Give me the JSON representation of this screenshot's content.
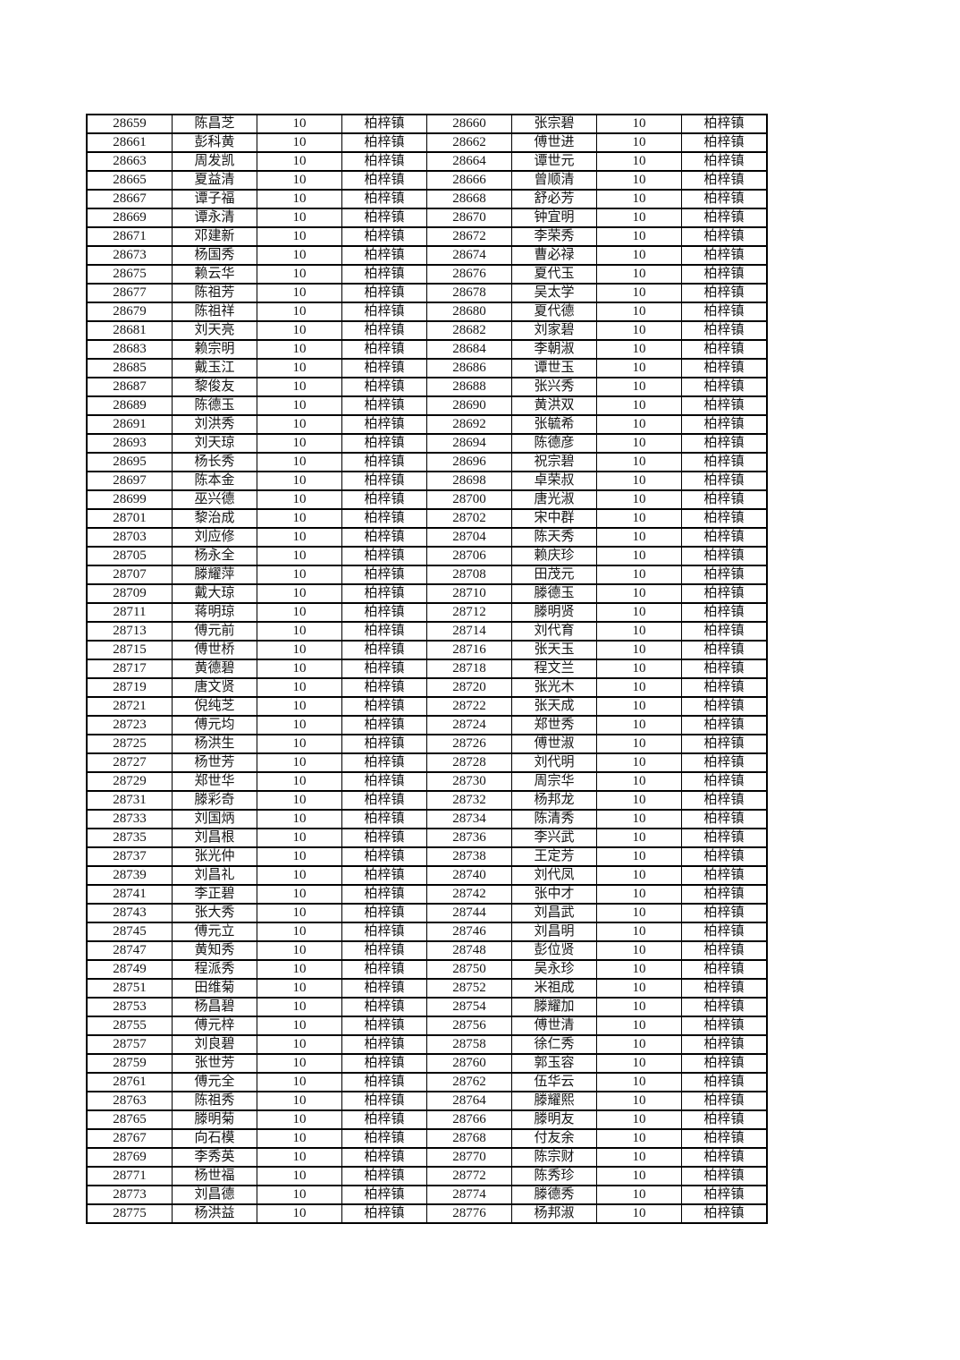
{
  "page": {
    "background_color": "#ffffff",
    "text_color": "#141414",
    "border_color": "#000000"
  },
  "table": {
    "column_roles": [
      "id",
      "name",
      "value",
      "town",
      "id",
      "name",
      "value",
      "town"
    ],
    "repeated_value": "10",
    "repeated_town": "柏梓镇",
    "rows": [
      [
        "28659",
        "陈昌芝",
        "10",
        "柏梓镇",
        "28660",
        "张宗碧",
        "10",
        "柏梓镇"
      ],
      [
        "28661",
        "彭科黄",
        "10",
        "柏梓镇",
        "28662",
        "傅世进",
        "10",
        "柏梓镇"
      ],
      [
        "28663",
        "周发凯",
        "10",
        "柏梓镇",
        "28664",
        "谭世元",
        "10",
        "柏梓镇"
      ],
      [
        "28665",
        "夏益清",
        "10",
        "柏梓镇",
        "28666",
        "曾顺清",
        "10",
        "柏梓镇"
      ],
      [
        "28667",
        "谭子福",
        "10",
        "柏梓镇",
        "28668",
        "舒必芳",
        "10",
        "柏梓镇"
      ],
      [
        "28669",
        "谭永清",
        "10",
        "柏梓镇",
        "28670",
        "钟宜明",
        "10",
        "柏梓镇"
      ],
      [
        "28671",
        "邓建新",
        "10",
        "柏梓镇",
        "28672",
        "李荣秀",
        "10",
        "柏梓镇"
      ],
      [
        "28673",
        "杨国秀",
        "10",
        "柏梓镇",
        "28674",
        "曹必禄",
        "10",
        "柏梓镇"
      ],
      [
        "28675",
        "赖云华",
        "10",
        "柏梓镇",
        "28676",
        "夏代玉",
        "10",
        "柏梓镇"
      ],
      [
        "28677",
        "陈祖芳",
        "10",
        "柏梓镇",
        "28678",
        "吴太学",
        "10",
        "柏梓镇"
      ],
      [
        "28679",
        "陈祖祥",
        "10",
        "柏梓镇",
        "28680",
        "夏代德",
        "10",
        "柏梓镇"
      ],
      [
        "28681",
        "刘天亮",
        "10",
        "柏梓镇",
        "28682",
        "刘家碧",
        "10",
        "柏梓镇"
      ],
      [
        "28683",
        "赖宗明",
        "10",
        "柏梓镇",
        "28684",
        "李朝淑",
        "10",
        "柏梓镇"
      ],
      [
        "28685",
        "戴玉江",
        "10",
        "柏梓镇",
        "28686",
        "谭世玉",
        "10",
        "柏梓镇"
      ],
      [
        "28687",
        "黎俊友",
        "10",
        "柏梓镇",
        "28688",
        "张兴秀",
        "10",
        "柏梓镇"
      ],
      [
        "28689",
        "陈德玉",
        "10",
        "柏梓镇",
        "28690",
        "黄洪双",
        "10",
        "柏梓镇"
      ],
      [
        "28691",
        "刘洪秀",
        "10",
        "柏梓镇",
        "28692",
        "张毓希",
        "10",
        "柏梓镇"
      ],
      [
        "28693",
        "刘天琼",
        "10",
        "柏梓镇",
        "28694",
        "陈德彦",
        "10",
        "柏梓镇"
      ],
      [
        "28695",
        "杨长秀",
        "10",
        "柏梓镇",
        "28696",
        "祝宗碧",
        "10",
        "柏梓镇"
      ],
      [
        "28697",
        "陈本金",
        "10",
        "柏梓镇",
        "28698",
        "卓荣叔",
        "10",
        "柏梓镇"
      ],
      [
        "28699",
        "巫兴德",
        "10",
        "柏梓镇",
        "28700",
        "唐光淑",
        "10",
        "柏梓镇"
      ],
      [
        "28701",
        "黎治成",
        "10",
        "柏梓镇",
        "28702",
        "宋中群",
        "10",
        "柏梓镇"
      ],
      [
        "28703",
        "刘应修",
        "10",
        "柏梓镇",
        "28704",
        "陈天秀",
        "10",
        "柏梓镇"
      ],
      [
        "28705",
        "杨永全",
        "10",
        "柏梓镇",
        "28706",
        "赖庆珍",
        "10",
        "柏梓镇"
      ],
      [
        "28707",
        "滕耀萍",
        "10",
        "柏梓镇",
        "28708",
        "田茂元",
        "10",
        "柏梓镇"
      ],
      [
        "28709",
        "戴大琼",
        "10",
        "柏梓镇",
        "28710",
        "滕德玉",
        "10",
        "柏梓镇"
      ],
      [
        "28711",
        "蒋明琼",
        "10",
        "柏梓镇",
        "28712",
        "滕明贤",
        "10",
        "柏梓镇"
      ],
      [
        "28713",
        "傅元前",
        "10",
        "柏梓镇",
        "28714",
        "刘代育",
        "10",
        "柏梓镇"
      ],
      [
        "28715",
        "傅世桥",
        "10",
        "柏梓镇",
        "28716",
        "张天玉",
        "10",
        "柏梓镇"
      ],
      [
        "28717",
        "黄德碧",
        "10",
        "柏梓镇",
        "28718",
        "程文兰",
        "10",
        "柏梓镇"
      ],
      [
        "28719",
        "唐文贤",
        "10",
        "柏梓镇",
        "28720",
        "张光木",
        "10",
        "柏梓镇"
      ],
      [
        "28721",
        "倪纯芝",
        "10",
        "柏梓镇",
        "28722",
        "张天成",
        "10",
        "柏梓镇"
      ],
      [
        "28723",
        "傅元均",
        "10",
        "柏梓镇",
        "28724",
        "郑世秀",
        "10",
        "柏梓镇"
      ],
      [
        "28725",
        "杨洪生",
        "10",
        "柏梓镇",
        "28726",
        "傅世淑",
        "10",
        "柏梓镇"
      ],
      [
        "28727",
        "杨世芳",
        "10",
        "柏梓镇",
        "28728",
        "刘代明",
        "10",
        "柏梓镇"
      ],
      [
        "28729",
        "郑世华",
        "10",
        "柏梓镇",
        "28730",
        "周宗华",
        "10",
        "柏梓镇"
      ],
      [
        "28731",
        "滕彩奇",
        "10",
        "柏梓镇",
        "28732",
        "杨邦龙",
        "10",
        "柏梓镇"
      ],
      [
        "28733",
        "刘国炳",
        "10",
        "柏梓镇",
        "28734",
        "陈清秀",
        "10",
        "柏梓镇"
      ],
      [
        "28735",
        "刘昌根",
        "10",
        "柏梓镇",
        "28736",
        "李兴武",
        "10",
        "柏梓镇"
      ],
      [
        "28737",
        "张光仲",
        "10",
        "柏梓镇",
        "28738",
        "王定芳",
        "10",
        "柏梓镇"
      ],
      [
        "28739",
        "刘昌礼",
        "10",
        "柏梓镇",
        "28740",
        "刘代凤",
        "10",
        "柏梓镇"
      ],
      [
        "28741",
        "李正碧",
        "10",
        "柏梓镇",
        "28742",
        "张中才",
        "10",
        "柏梓镇"
      ],
      [
        "28743",
        "张大秀",
        "10",
        "柏梓镇",
        "28744",
        "刘昌武",
        "10",
        "柏梓镇"
      ],
      [
        "28745",
        "傅元立",
        "10",
        "柏梓镇",
        "28746",
        "刘昌明",
        "10",
        "柏梓镇"
      ],
      [
        "28747",
        "黄知秀",
        "10",
        "柏梓镇",
        "28748",
        "彭位贤",
        "10",
        "柏梓镇"
      ],
      [
        "28749",
        "程派秀",
        "10",
        "柏梓镇",
        "28750",
        "吴永珍",
        "10",
        "柏梓镇"
      ],
      [
        "28751",
        "田维菊",
        "10",
        "柏梓镇",
        "28752",
        "米祖成",
        "10",
        "柏梓镇"
      ],
      [
        "28753",
        "杨昌碧",
        "10",
        "柏梓镇",
        "28754",
        "滕耀加",
        "10",
        "柏梓镇"
      ],
      [
        "28755",
        "傅元梓",
        "10",
        "柏梓镇",
        "28756",
        "傅世清",
        "10",
        "柏梓镇"
      ],
      [
        "28757",
        "刘良碧",
        "10",
        "柏梓镇",
        "28758",
        "徐仁秀",
        "10",
        "柏梓镇"
      ],
      [
        "28759",
        "张世芳",
        "10",
        "柏梓镇",
        "28760",
        "郭玉容",
        "10",
        "柏梓镇"
      ],
      [
        "28761",
        "傅元全",
        "10",
        "柏梓镇",
        "28762",
        "伍华云",
        "10",
        "柏梓镇"
      ],
      [
        "28763",
        "陈祖秀",
        "10",
        "柏梓镇",
        "28764",
        "滕耀熙",
        "10",
        "柏梓镇"
      ],
      [
        "28765",
        "滕明菊",
        "10",
        "柏梓镇",
        "28766",
        "滕明友",
        "10",
        "柏梓镇"
      ],
      [
        "28767",
        "向石模",
        "10",
        "柏梓镇",
        "28768",
        "付友余",
        "10",
        "柏梓镇"
      ],
      [
        "28769",
        "李秀英",
        "10",
        "柏梓镇",
        "28770",
        "陈宗财",
        "10",
        "柏梓镇"
      ],
      [
        "28771",
        "杨世福",
        "10",
        "柏梓镇",
        "28772",
        "陈秀珍",
        "10",
        "柏梓镇"
      ],
      [
        "28773",
        "刘昌德",
        "10",
        "柏梓镇",
        "28774",
        "滕德秀",
        "10",
        "柏梓镇"
      ],
      [
        "28775",
        "杨洪益",
        "10",
        "柏梓镇",
        "28776",
        "杨邦淑",
        "10",
        "柏梓镇"
      ]
    ]
  }
}
